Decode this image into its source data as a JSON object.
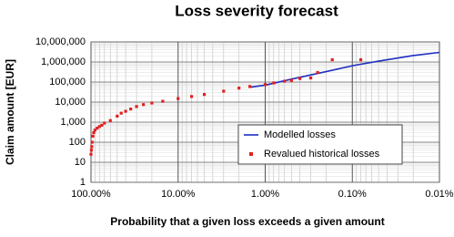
{
  "chart_data": {
    "type": "scatter-line",
    "title": "Loss severity forecast",
    "x_label": "Probability that a given loss exceeds a given amount",
    "y_label": "Claim amount [EUR]",
    "xscale": "log",
    "yscale": "log",
    "grid": true,
    "minor_grid": true,
    "legend": "lower-right",
    "xlim": [
      100,
      0.01
    ],
    "xticks": [
      {
        "value": 100,
        "label": "100.00%"
      },
      {
        "value": 10,
        "label": "10.00%"
      },
      {
        "value": 1,
        "label": "1.00%"
      },
      {
        "value": 0.1,
        "label": "0.10%"
      },
      {
        "value": 0.01,
        "label": "0.01%"
      }
    ],
    "ylim": [
      1,
      10000000
    ],
    "yticks": [
      1,
      10,
      100,
      {
        "value": 1000,
        "label": "1,000"
      },
      {
        "value": 10000,
        "label": "10,000"
      },
      {
        "value": 100000,
        "label": "100,000"
      },
      {
        "value": 1000000,
        "label": "1,000,000"
      },
      {
        "value": 10000000,
        "label": "10,000,000"
      }
    ],
    "series": [
      {
        "name": "Modelled losses",
        "kind": "line",
        "color": "#1f2fbf",
        "x": [
          1.5,
          1,
          0.5,
          0.2,
          0.1,
          0.05,
          0.02,
          0.01
        ],
        "values": [
          55000,
          70000,
          140000,
          330000,
          650000,
          1100000,
          2100000,
          3000000
        ]
      },
      {
        "name": "Revalued historical losses",
        "kind": "points",
        "color": "#e02020",
        "x": [
          100,
          99,
          98,
          97,
          95,
          93,
          90,
          85,
          80,
          75,
          70,
          60,
          50,
          45,
          40,
          35,
          30,
          25,
          20,
          15,
          10,
          7,
          5,
          3,
          2,
          1.5,
          1,
          0.8,
          0.6,
          0.5,
          0.4,
          0.3,
          0.25,
          0.17,
          0.08
        ],
        "values": [
          25,
          40,
          60,
          100,
          200,
          300,
          400,
          500,
          600,
          700,
          900,
          1200,
          2000,
          2800,
          3500,
          4500,
          6000,
          7500,
          9000,
          11000,
          15000,
          19000,
          24000,
          35000,
          50000,
          60000,
          75000,
          90000,
          110000,
          120000,
          150000,
          160000,
          300000,
          1300000,
          1300000
        ]
      }
    ]
  }
}
